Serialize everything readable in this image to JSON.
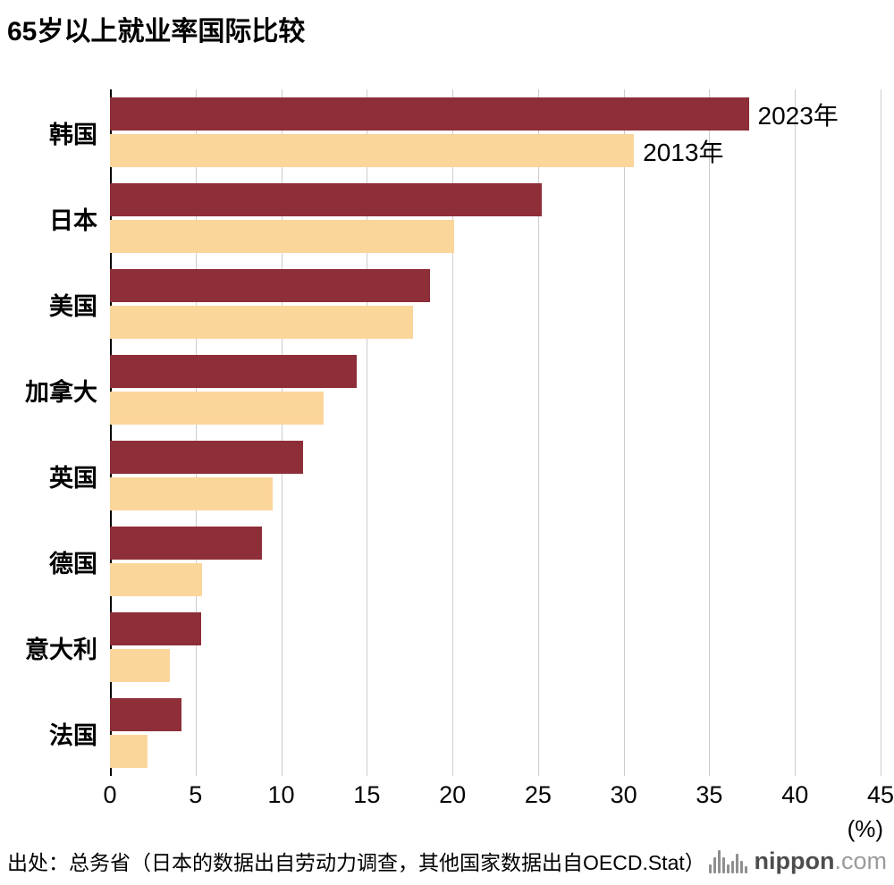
{
  "title": "65岁以上就业率国际比较",
  "chart_data": {
    "type": "bar",
    "orientation": "horizontal",
    "title": "65岁以上就业率国际比较",
    "categories": [
      "韩国",
      "日本",
      "美国",
      "加拿大",
      "英国",
      "德国",
      "意大利",
      "法国"
    ],
    "series": [
      {
        "name": "2023年",
        "color": "#8e2e38",
        "values": [
          37.3,
          25.2,
          18.7,
          14.4,
          11.3,
          8.9,
          5.3,
          4.2
        ]
      },
      {
        "name": "2013年",
        "color": "#fbd69b",
        "values": [
          30.6,
          20.1,
          17.7,
          12.5,
          9.5,
          5.4,
          3.5,
          2.2
        ]
      }
    ],
    "xlim": [
      0,
      45
    ],
    "xticks": [
      0,
      5,
      10,
      15,
      20,
      25,
      30,
      35,
      40,
      45
    ],
    "x_unit_label": "(%)",
    "grid": "vertical",
    "legend_position": "inline-first-group"
  },
  "footer": {
    "source": "出处：总务省（日本的数据出自劳动力调查，其他国家数据出自OECD.Stat）",
    "logo": {
      "name": "nippon",
      "suffix": ".com"
    }
  }
}
